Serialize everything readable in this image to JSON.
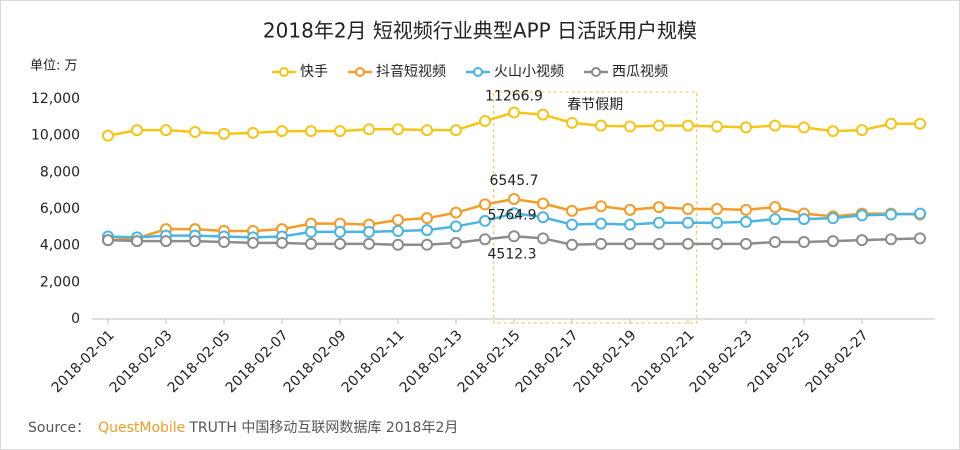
{
  "chart_data": {
    "type": "line",
    "title": "2018年2月 短视频行业典型APP 日活跃用户规模",
    "y_unit": "单位: 万",
    "categories": [
      "2018-02-01",
      null,
      "2018-02-03",
      null,
      "2018-02-05",
      null,
      "2018-02-07",
      null,
      "2018-02-09",
      null,
      "2018-02-11",
      null,
      "2018-02-13",
      null,
      "2018-02-15",
      null,
      "2018-02-17",
      null,
      "2018-02-19",
      null,
      "2018-02-21",
      null,
      "2018-02-23",
      null,
      "2018-02-25",
      null,
      "2018-02-27",
      null,
      null
    ],
    "series": [
      {
        "name": "快手",
        "color": "#f5c518",
        "values": [
          10000,
          10300,
          10300,
          10200,
          10100,
          10150,
          10250,
          10250,
          10250,
          10350,
          10350,
          10300,
          10300,
          10800,
          11266.9,
          11150,
          10700,
          10550,
          10500,
          10550,
          10550,
          10500,
          10450,
          10550,
          10450,
          10250,
          10300,
          10650,
          10650
        ],
        "value_labels": [
          null,
          null,
          null,
          null,
          null,
          null,
          null,
          null,
          null,
          null,
          null,
          null,
          null,
          null,
          "11266.9",
          null,
          null,
          null,
          null,
          null,
          null,
          null,
          null,
          null,
          null,
          null,
          null,
          null,
          null
        ]
      },
      {
        "name": "抖音短视频",
        "color": "#f39c27",
        "values": [
          4300,
          4400,
          4900,
          4900,
          4800,
          4800,
          4900,
          5200,
          5200,
          5150,
          5400,
          5500,
          5800,
          6250,
          6545.7,
          6300,
          5900,
          6150,
          5950,
          6100,
          6000,
          6000,
          5950,
          6100,
          5750,
          5600,
          5750,
          5750,
          5700
        ],
        "value_labels": [
          null,
          null,
          null,
          null,
          null,
          null,
          null,
          null,
          null,
          null,
          null,
          null,
          null,
          null,
          "6545.7",
          null,
          null,
          null,
          null,
          null,
          null,
          null,
          null,
          null,
          null,
          null,
          null,
          null,
          null
        ]
      },
      {
        "name": "火山小视频",
        "color": "#4bb5e0",
        "values": [
          4500,
          4450,
          4550,
          4550,
          4500,
          4450,
          4500,
          4750,
          4750,
          4750,
          4800,
          4850,
          5050,
          5350,
          5764.9,
          5550,
          5150,
          5200,
          5150,
          5250,
          5250,
          5250,
          5300,
          5450,
          5450,
          5500,
          5650,
          5700,
          5750
        ],
        "value_labels": [
          null,
          null,
          null,
          null,
          null,
          null,
          null,
          null,
          null,
          null,
          null,
          null,
          null,
          null,
          "5764.9",
          null,
          null,
          null,
          null,
          null,
          null,
          null,
          null,
          null,
          null,
          null,
          null,
          null,
          null
        ]
      },
      {
        "name": "西瓜视频",
        "color": "#8c8c8c",
        "values": [
          4300,
          4250,
          4250,
          4250,
          4200,
          4150,
          4150,
          4100,
          4100,
          4100,
          4050,
          4050,
          4150,
          4350,
          4512.3,
          4400,
          4050,
          4100,
          4100,
          4100,
          4100,
          4100,
          4100,
          4200,
          4200,
          4250,
          4300,
          4350,
          4400
        ],
        "value_labels": [
          null,
          null,
          null,
          null,
          null,
          null,
          null,
          null,
          null,
          null,
          null,
          null,
          null,
          null,
          "4512.3",
          null,
          null,
          null,
          null,
          null,
          null,
          null,
          null,
          null,
          null,
          null,
          null,
          null,
          null
        ]
      }
    ],
    "ylim": [
      0,
      12000
    ],
    "yticks": [
      0,
      {
        "value": 2000,
        "label": "2,000"
      },
      {
        "value": 4000,
        "label": "4,000"
      },
      {
        "value": 6000,
        "label": "6,000"
      },
      {
        "value": 8000,
        "label": "8,000"
      },
      {
        "value": 10000,
        "label": "10,000"
      },
      {
        "value": 12000,
        "label": "12,000"
      }
    ],
    "grid": false,
    "legend": "top",
    "highlight": {
      "label": "春节假期",
      "from": "2018-02-15",
      "to": "2018-02-21",
      "color": "#e8c34a"
    },
    "source_prefix": "Source：",
    "source_brand": "QuestMobile",
    "source_rest": "TRUTH 中国移动互联网数据库 2018年2月"
  }
}
